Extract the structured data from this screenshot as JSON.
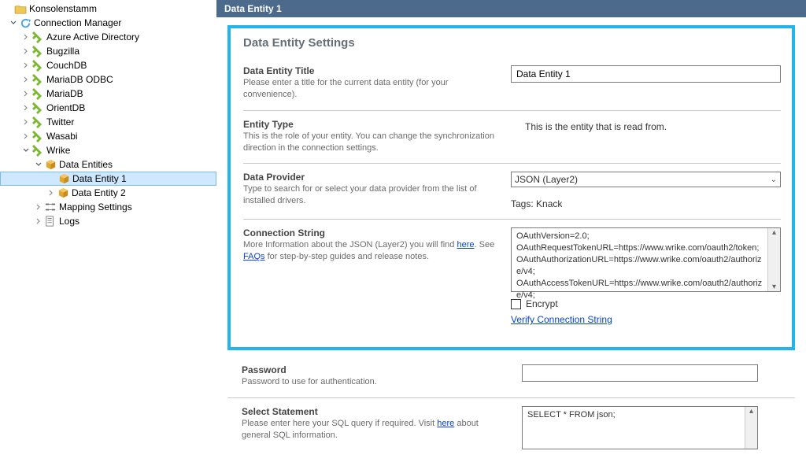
{
  "tree": {
    "root": "Konsolenstamm",
    "connectionManager": "Connection Manager",
    "items": [
      "Azure Active Directory",
      "Bugzilla",
      "CouchDB",
      "MariaDB ODBC",
      "MariaDB",
      "OrientDB",
      "Twitter",
      "Wasabi"
    ],
    "wrike": "Wrike",
    "dataEntities": "Data Entities",
    "dataEntity1": "Data Entity 1",
    "dataEntity2": "Data Entity 2",
    "mappingSettings": "Mapping Settings",
    "logs": "Logs"
  },
  "header": {
    "title": "Data Entity 1"
  },
  "panel": {
    "title": "Data Entity Settings",
    "entityTitle": {
      "label": "Data Entity Title",
      "desc": "Please enter a title for the current data entity (for your convenience).",
      "value": "Data Entity 1"
    },
    "entityType": {
      "label": "Entity Type",
      "desc": "This is the role of your entity. You can change the synchronization direction in the connection settings.",
      "value": "This is the entity that is read from."
    },
    "dataProvider": {
      "label": "Data Provider",
      "desc": "Type to search for or select your data provider from the list of installed drivers.",
      "value": "JSON (Layer2)",
      "tags": "Tags: Knack"
    },
    "connString": {
      "label": "Connection String",
      "descPrefix": "More Information about the JSON (Layer2) you will find ",
      "hereText": "here",
      "descMid": ". See ",
      "faqsText": "FAQs",
      "descSuffix": " for step-by-step guides and release notes.",
      "value": "OAuthVersion=2.0;\nOAuthRequestTokenURL=https://www.wrike.com/oauth2/token;\nOAuthAuthorizationURL=https://www.wrike.com/oauth2/authorize/v4;\nOAuthAccessTokenURL=https://www.wrike.com/oauth2/authorize/v4;",
      "encrypt": "Encrypt",
      "verify": "Verify Connection String"
    }
  },
  "password": {
    "label": "Password",
    "desc": "Password to use for authentication.",
    "value": ""
  },
  "select": {
    "label": "Select Statement",
    "descPrefix": "Please enter here your SQL query if required. Visit ",
    "hereText": "here",
    "descSuffix": " about general SQL information.",
    "value": "SELECT * FROM json;"
  }
}
